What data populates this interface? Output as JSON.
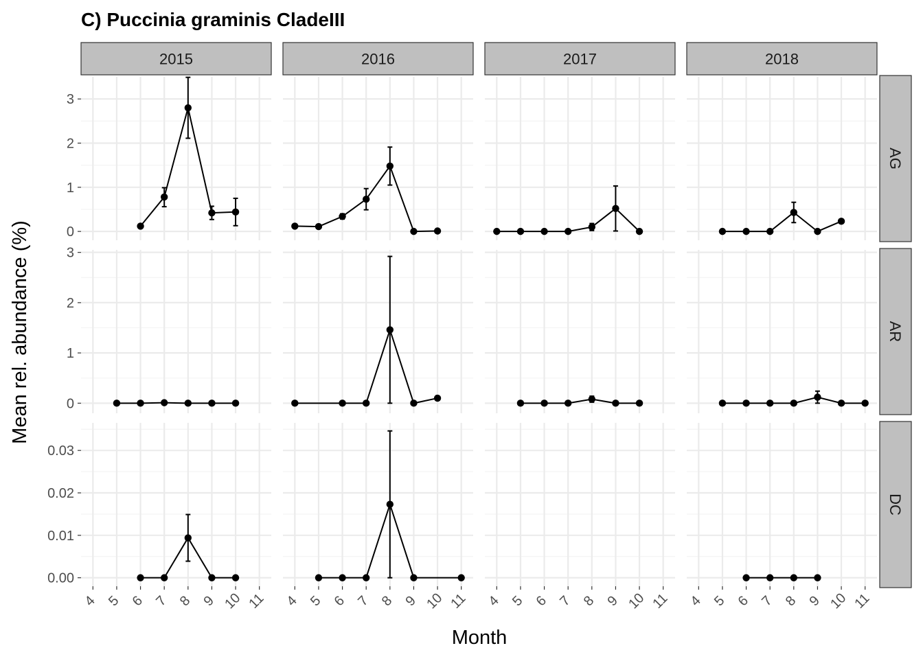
{
  "chart_data": {
    "type": "line",
    "title": "C) Puccinia graminis CladeIII",
    "xlabel": "Month",
    "ylabel": "Mean rel. abundance (%)",
    "x_ticks": [
      4,
      5,
      6,
      7,
      8,
      9,
      10,
      11
    ],
    "xlim": [
      3.5,
      11.5
    ],
    "years": [
      "2015",
      "2016",
      "2017",
      "2018"
    ],
    "rows": [
      {
        "label": "AG",
        "ylim": [
          -0.2,
          3.5
        ],
        "y_ticks": [
          0,
          1,
          2,
          3
        ],
        "y_tick_labels": [
          "0",
          "1",
          "2",
          "3"
        ],
        "panels": [
          {
            "year": "2015",
            "points": [
              {
                "x": 6,
                "y": 0.12
              },
              {
                "x": 7,
                "y": 0.78,
                "lo": 0.56,
                "hi": 0.99
              },
              {
                "x": 8,
                "y": 2.8,
                "lo": 2.11,
                "hi": 3.49
              },
              {
                "x": 9,
                "y": 0.42,
                "lo": 0.27,
                "hi": 0.57
              },
              {
                "x": 10,
                "y": 0.44,
                "lo": 0.13,
                "hi": 0.75
              }
            ]
          },
          {
            "year": "2016",
            "points": [
              {
                "x": 4,
                "y": 0.12
              },
              {
                "x": 5,
                "y": 0.11
              },
              {
                "x": 6,
                "y": 0.34,
                "lo": 0.28,
                "hi": 0.4
              },
              {
                "x": 7,
                "y": 0.73,
                "lo": 0.49,
                "hi": 0.97
              },
              {
                "x": 8,
                "y": 1.48,
                "lo": 1.05,
                "hi": 1.91
              },
              {
                "x": 9,
                "y": 0.0
              },
              {
                "x": 10,
                "y": 0.01
              }
            ]
          },
          {
            "year": "2017",
            "points": [
              {
                "x": 4,
                "y": 0.0
              },
              {
                "x": 5,
                "y": 0.0
              },
              {
                "x": 6,
                "y": 0.0
              },
              {
                "x": 7,
                "y": 0.0
              },
              {
                "x": 8,
                "y": 0.1,
                "lo": 0.02,
                "hi": 0.18
              },
              {
                "x": 9,
                "y": 0.52,
                "lo": 0.01,
                "hi": 1.03
              },
              {
                "x": 10,
                "y": 0.0
              }
            ]
          },
          {
            "year": "2018",
            "points": [
              {
                "x": 5,
                "y": 0.0
              },
              {
                "x": 6,
                "y": 0.0
              },
              {
                "x": 7,
                "y": 0.0
              },
              {
                "x": 8,
                "y": 0.43,
                "lo": 0.2,
                "hi": 0.66
              },
              {
                "x": 9,
                "y": 0.0
              },
              {
                "x": 10,
                "y": 0.23
              }
            ]
          }
        ]
      },
      {
        "label": "AR",
        "ylim": [
          -0.2,
          3.05
        ],
        "y_ticks": [
          0,
          1,
          2,
          3
        ],
        "y_tick_labels": [
          "0",
          "1",
          "2",
          "3"
        ],
        "panels": [
          {
            "year": "2015",
            "points": [
              {
                "x": 5,
                "y": 0.0
              },
              {
                "x": 6,
                "y": 0.0
              },
              {
                "x": 7,
                "y": 0.01
              },
              {
                "x": 8,
                "y": 0.0
              },
              {
                "x": 9,
                "y": 0.0
              },
              {
                "x": 10,
                "y": 0.0
              }
            ]
          },
          {
            "year": "2016",
            "points": [
              {
                "x": 4,
                "y": 0.0
              },
              {
                "x": 6,
                "y": 0.0
              },
              {
                "x": 7,
                "y": 0.0
              },
              {
                "x": 8,
                "y": 1.46,
                "lo": 0.0,
                "hi": 2.92
              },
              {
                "x": 9,
                "y": 0.0
              },
              {
                "x": 10,
                "y": 0.1
              }
            ]
          },
          {
            "year": "2017",
            "points": [
              {
                "x": 5,
                "y": 0.0
              },
              {
                "x": 6,
                "y": 0.0
              },
              {
                "x": 7,
                "y": 0.0
              },
              {
                "x": 8,
                "y": 0.08,
                "lo": 0.02,
                "hi": 0.14
              },
              {
                "x": 9,
                "y": 0.0
              },
              {
                "x": 10,
                "y": 0.0
              }
            ]
          },
          {
            "year": "2018",
            "points": [
              {
                "x": 5,
                "y": 0.0
              },
              {
                "x": 6,
                "y": 0.0
              },
              {
                "x": 7,
                "y": 0.0
              },
              {
                "x": 8,
                "y": 0.0
              },
              {
                "x": 9,
                "y": 0.12,
                "lo": 0.0,
                "hi": 0.24
              },
              {
                "x": 10,
                "y": 0.0
              },
              {
                "x": 11,
                "y": 0.0
              }
            ]
          }
        ]
      },
      {
        "label": "DC",
        "ylim": [
          -0.002,
          0.0365
        ],
        "y_ticks": [
          0,
          0.01,
          0.02,
          0.03
        ],
        "y_tick_labels": [
          "0.00",
          "0.01",
          "0.02",
          "0.03"
        ],
        "panels": [
          {
            "year": "2015",
            "points": [
              {
                "x": 6,
                "y": 0.0
              },
              {
                "x": 7,
                "y": 0.0
              },
              {
                "x": 8,
                "y": 0.0094,
                "lo": 0.0039,
                "hi": 0.0149
              },
              {
                "x": 9,
                "y": 0.0
              },
              {
                "x": 10,
                "y": 0.0
              }
            ]
          },
          {
            "year": "2016",
            "points": [
              {
                "x": 5,
                "y": 0.0
              },
              {
                "x": 6,
                "y": 0.0
              },
              {
                "x": 7,
                "y": 0.0
              },
              {
                "x": 8,
                "y": 0.0173,
                "lo": 0.0,
                "hi": 0.0346
              },
              {
                "x": 9,
                "y": 0.0
              },
              {
                "x": 11,
                "y": 0.0
              }
            ]
          },
          {
            "year": "2017",
            "points": []
          },
          {
            "year": "2018",
            "points": [
              {
                "x": 6,
                "y": 0.0
              },
              {
                "x": 7,
                "y": 0.0
              },
              {
                "x": 8,
                "y": 0.0
              },
              {
                "x": 9,
                "y": 0.0
              }
            ]
          }
        ]
      }
    ]
  }
}
